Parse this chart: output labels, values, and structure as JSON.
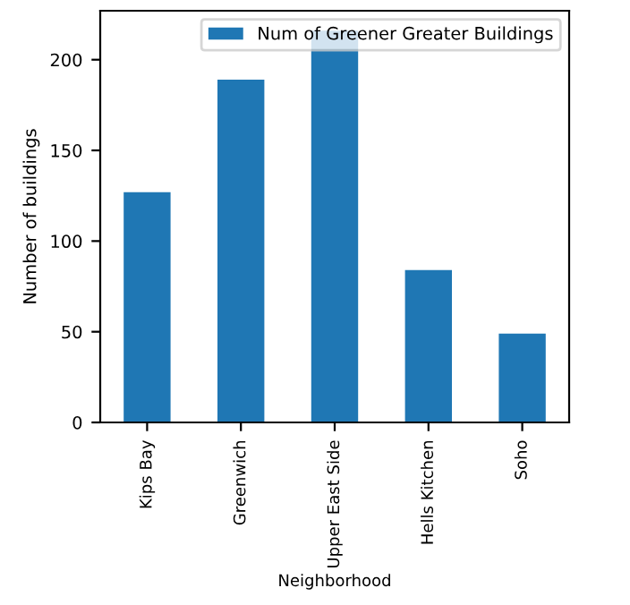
{
  "chart_data": {
    "type": "bar",
    "xlabel": "Neighborhood",
    "ylabel": "Number of buildings",
    "categories": [
      "Kips Bay",
      "Greenwich",
      "Upper East Side",
      "Hells Kitchen",
      "Soho"
    ],
    "series": [
      {
        "name": "Num of Greener Greater Buildings",
        "color": "#1f77b4",
        "values": [
          127,
          189,
          216,
          84,
          49
        ]
      }
    ],
    "ylim": [
      0,
      227
    ],
    "yticks": [
      0,
      50,
      100,
      150,
      200
    ],
    "grid": false,
    "legend": "top right"
  }
}
